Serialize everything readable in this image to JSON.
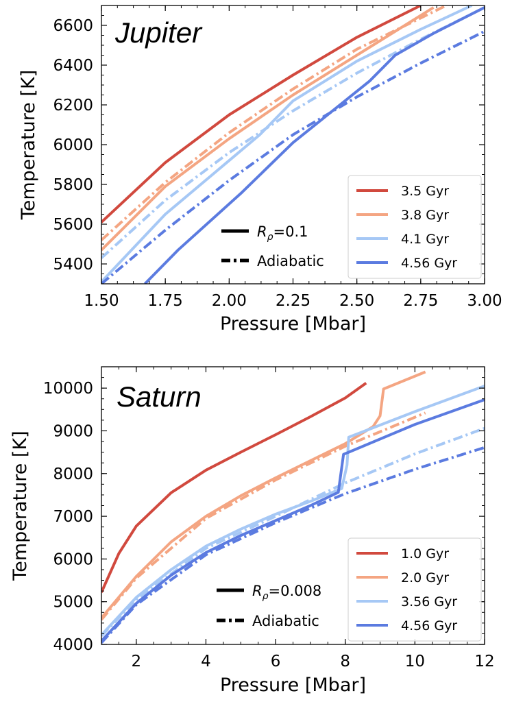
{
  "chart_data": [
    {
      "type": "line",
      "title": "Jupiter",
      "xlabel": "Pressure [Mbar]",
      "ylabel": "Temperature [K]",
      "xlim": [
        1.5,
        3.0
      ],
      "ylim": [
        5300,
        6700
      ],
      "xticks": [
        "1.50",
        "1.75",
        "2.00",
        "2.25",
        "2.50",
        "2.75",
        "3.00"
      ],
      "yticks": [
        "5400",
        "5600",
        "5800",
        "6000",
        "6200",
        "6400",
        "6600"
      ],
      "grid": false,
      "legend_position": "lower-right",
      "style_legend": [
        {
          "label": "$R_\\rho$=0.1",
          "text_before": "R",
          "subscript": "ρ",
          "text_after": "=0.1",
          "linestyle": "solid"
        },
        {
          "label": "Adiabatic",
          "text_before": "Adiabatic",
          "subscript": "",
          "text_after": "",
          "linestyle": "dashdot"
        }
      ],
      "series": [
        {
          "name": "3.5 Gyr",
          "color": "#d1493e",
          "linestyle": "solid",
          "x": [
            1.5,
            1.75,
            2.0,
            2.25,
            2.5,
            2.75
          ],
          "y": [
            5610,
            5910,
            6150,
            6350,
            6540,
            6700
          ]
        },
        {
          "name": "3.8 Gyr",
          "color": "#f4a582",
          "linestyle": "solid",
          "x": [
            1.5,
            1.75,
            2.0,
            2.25,
            2.5,
            2.8
          ],
          "y": [
            5470,
            5790,
            6030,
            6250,
            6450,
            6690
          ]
        },
        {
          "name": "3.8 Gyr",
          "color": "#f4a582",
          "linestyle": "dashdot",
          "x": [
            1.5,
            1.75,
            2.0,
            2.25,
            2.5,
            2.85
          ],
          "y": [
            5520,
            5810,
            6060,
            6280,
            6480,
            6700
          ]
        },
        {
          "name": "4.1 Gyr",
          "color": "#a6c8f5",
          "linestyle": "solid",
          "x": [
            1.5,
            1.75,
            2.0,
            2.12,
            2.25,
            2.5,
            2.75,
            2.95
          ],
          "y": [
            5310,
            5650,
            5920,
            6050,
            6220,
            6420,
            6580,
            6700
          ]
        },
        {
          "name": "4.1 Gyr",
          "color": "#a6c8f5",
          "linestyle": "dashdot",
          "x": [
            1.5,
            1.75,
            2.0,
            2.25,
            2.5,
            2.75,
            3.0
          ],
          "y": [
            5430,
            5720,
            5960,
            6170,
            6360,
            6530,
            6690
          ]
        },
        {
          "name": "4.56 Gyr",
          "color": "#5b7be0",
          "linestyle": "solid",
          "x": [
            1.67,
            1.8,
            2.05,
            2.25,
            2.55,
            2.65,
            2.8,
            3.0
          ],
          "y": [
            5300,
            5470,
            5760,
            6010,
            6320,
            6450,
            6560,
            6690
          ]
        },
        {
          "name": "4.56 Gyr",
          "color": "#5b7be0",
          "linestyle": "dashdot",
          "x": [
            1.5,
            1.75,
            2.0,
            2.25,
            2.5,
            2.75,
            3.0
          ],
          "y": [
            5300,
            5570,
            5820,
            6050,
            6240,
            6410,
            6570
          ]
        }
      ]
    },
    {
      "type": "line",
      "title": "Saturn",
      "xlabel": "Pressure [Mbar]",
      "ylabel": "Temperature [K]",
      "xlim": [
        1,
        12
      ],
      "ylim": [
        4000,
        10500
      ],
      "xticks": [
        "2",
        "4",
        "6",
        "8",
        "10",
        "12"
      ],
      "yticks": [
        "4000",
        "5000",
        "6000",
        "7000",
        "8000",
        "9000",
        "10000"
      ],
      "grid": false,
      "legend_position": "lower-right",
      "style_legend": [
        {
          "label": "$R_\\rho$=0.008",
          "text_before": "R",
          "subscript": "ρ",
          "text_after": "=0.008",
          "linestyle": "solid"
        },
        {
          "label": "Adiabatic",
          "text_before": "Adiabatic",
          "subscript": "",
          "text_after": "",
          "linestyle": "dashdot"
        }
      ],
      "series": [
        {
          "name": "1.0 Gyr",
          "color": "#d1493e",
          "linestyle": "solid",
          "x": [
            1.0,
            1.5,
            2.0,
            3.0,
            4.0,
            5.0,
            6.0,
            7.0,
            8.0,
            8.6
          ],
          "y": [
            5220,
            6130,
            6770,
            7550,
            8080,
            8500,
            8910,
            9330,
            9770,
            10120
          ]
        },
        {
          "name": "2.0 Gyr",
          "color": "#f4a582",
          "linestyle": "solid",
          "x": [
            1.0,
            2.0,
            3.0,
            4.0,
            5.0,
            6.0,
            7.0,
            8.0,
            8.8,
            9.0,
            9.1,
            10.3
          ],
          "y": [
            4620,
            5590,
            6400,
            7000,
            7480,
            7900,
            8300,
            8700,
            9100,
            9350,
            9980,
            10380
          ]
        },
        {
          "name": "2.0 Gyr",
          "color": "#f4a582",
          "linestyle": "dashdot",
          "x": [
            1.0,
            2.0,
            4.0,
            6.0,
            8.0,
            10.3
          ],
          "y": [
            4580,
            5550,
            6950,
            7850,
            8640,
            9420
          ]
        },
        {
          "name": "3.56 Gyr",
          "color": "#a6c8f5",
          "linestyle": "solid",
          "x": [
            1.0,
            2.0,
            3.0,
            4.0,
            5.0,
            6.0,
            7.0,
            7.9,
            8.05,
            8.1,
            10.0,
            12.0
          ],
          "y": [
            4220,
            5100,
            5750,
            6300,
            6700,
            7050,
            7350,
            7650,
            8200,
            8850,
            9450,
            10050
          ]
        },
        {
          "name": "3.56 Gyr",
          "color": "#a6c8f5",
          "linestyle": "dashdot",
          "x": [
            1.0,
            2.0,
            4.0,
            6.0,
            8.0,
            10.0,
            12.0
          ],
          "y": [
            4200,
            5050,
            6250,
            7000,
            7780,
            8460,
            9060
          ]
        },
        {
          "name": "4.56 Gyr",
          "color": "#5b7be0",
          "linestyle": "solid",
          "x": [
            1.0,
            2.0,
            3.0,
            4.0,
            5.0,
            6.0,
            7.0,
            7.8,
            7.95,
            8.1,
            10.0,
            12.0
          ],
          "y": [
            4080,
            4960,
            5620,
            6150,
            6550,
            6900,
            7250,
            7560,
            8450,
            8500,
            9150,
            9730
          ]
        },
        {
          "name": "4.56 Gyr",
          "color": "#5b7be0",
          "linestyle": "dashdot",
          "x": [
            1.0,
            2.0,
            4.0,
            6.0,
            8.0,
            10.0,
            12.0
          ],
          "y": [
            4040,
            4930,
            6100,
            6850,
            7530,
            8100,
            8610
          ]
        }
      ]
    }
  ],
  "legends": [
    [
      {
        "label": "3.5 Gyr",
        "color": "#d1493e"
      },
      {
        "label": "3.8 Gyr",
        "color": "#f4a582"
      },
      {
        "label": "4.1 Gyr",
        "color": "#a6c8f5"
      },
      {
        "label": "4.56 Gyr",
        "color": "#5b7be0"
      }
    ],
    [
      {
        "label": "1.0 Gyr",
        "color": "#d1493e"
      },
      {
        "label": "2.0 Gyr",
        "color": "#f4a582"
      },
      {
        "label": "3.56 Gyr",
        "color": "#a6c8f5"
      },
      {
        "label": "4.56 Gyr",
        "color": "#5b7be0"
      }
    ]
  ]
}
